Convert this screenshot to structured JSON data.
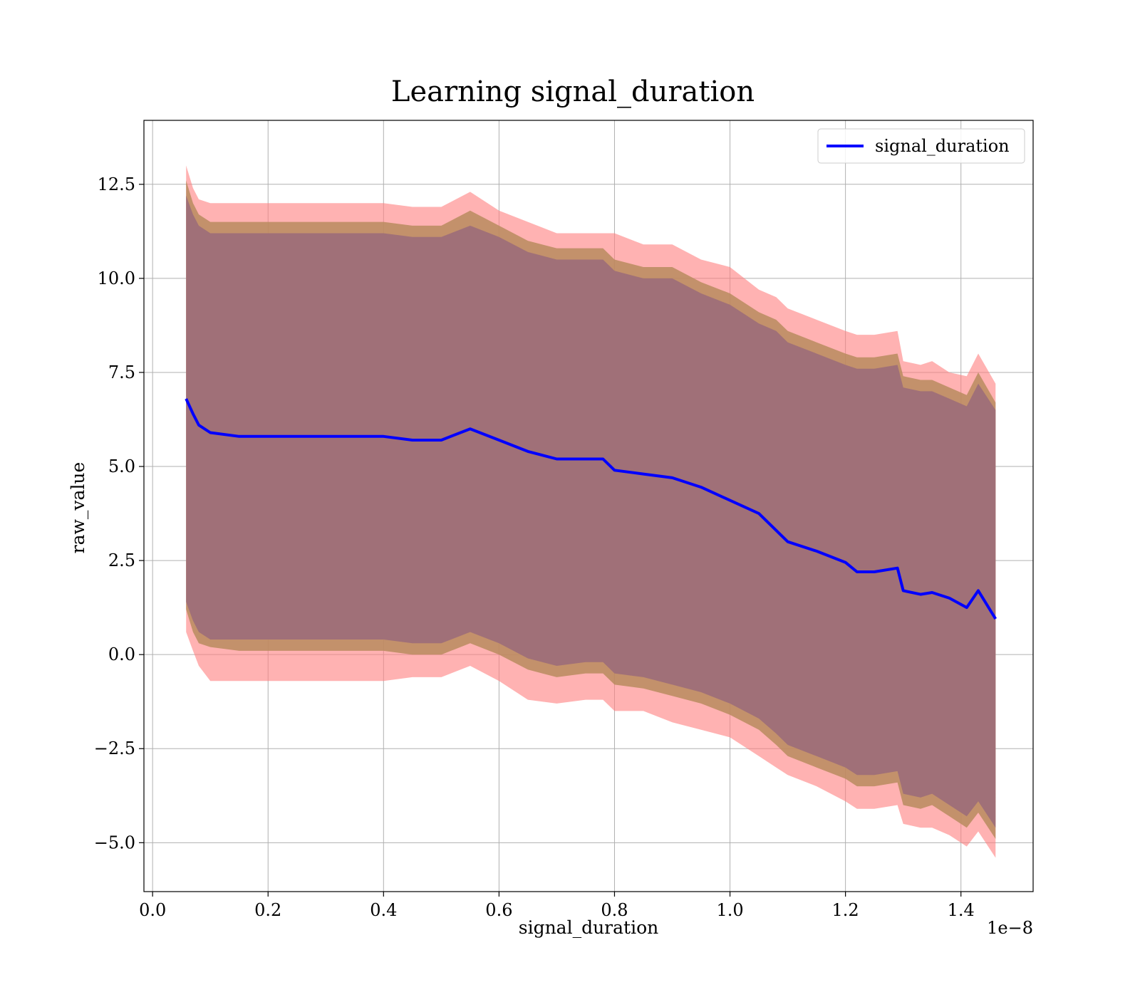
{
  "chart_data": {
    "type": "line",
    "title": "Learning signal_duration",
    "xlabel": "signal_duration",
    "ylabel": "raw_value",
    "x_offset_text": "1e−8",
    "xlim": [
      -0.015,
      1.525
    ],
    "ylim": [
      -6.3,
      14.2
    ],
    "x_ticks": [
      0.0,
      0.2,
      0.4,
      0.6,
      0.8,
      1.0,
      1.2,
      1.4
    ],
    "x_tick_labels": [
      "0.0",
      "0.2",
      "0.4",
      "0.6",
      "0.8",
      "1.0",
      "1.2",
      "1.4"
    ],
    "y_ticks": [
      -5.0,
      -2.5,
      0.0,
      2.5,
      5.0,
      7.5,
      10.0,
      12.5
    ],
    "y_tick_labels": [
      "−5.0",
      "−2.5",
      "0.0",
      "2.5",
      "5.0",
      "7.5",
      "10.0",
      "12.5"
    ],
    "grid": true,
    "legend": {
      "placement": "top-right",
      "entries": [
        "signal_duration"
      ]
    },
    "colors": {
      "mean_line": "#0000ff",
      "band_outer": "#ff7f7f",
      "band_middle": "#b98b5e",
      "band_inner": "#a07078",
      "grid": "#b0b0b0"
    },
    "x": [
      0.058,
      0.07,
      0.08,
      0.1,
      0.15,
      0.2,
      0.25,
      0.3,
      0.35,
      0.4,
      0.45,
      0.5,
      0.55,
      0.6,
      0.65,
      0.7,
      0.75,
      0.78,
      0.8,
      0.85,
      0.9,
      0.95,
      1.0,
      1.05,
      1.08,
      1.1,
      1.15,
      1.2,
      1.22,
      1.25,
      1.29,
      1.3,
      1.33,
      1.35,
      1.38,
      1.41,
      1.43,
      1.46
    ],
    "series": [
      {
        "name": "signal_duration",
        "role": "mean",
        "values": [
          6.8,
          6.4,
          6.1,
          5.9,
          5.8,
          5.8,
          5.8,
          5.8,
          5.8,
          5.8,
          5.7,
          5.7,
          6.0,
          5.7,
          5.4,
          5.2,
          5.2,
          5.2,
          4.9,
          4.8,
          4.7,
          4.45,
          4.1,
          3.75,
          3.3,
          3.0,
          2.75,
          2.45,
          2.2,
          2.2,
          2.3,
          1.7,
          1.6,
          1.65,
          1.5,
          1.25,
          1.7,
          0.95
        ]
      },
      {
        "role": "band_outer",
        "upper": [
          13.0,
          12.4,
          12.1,
          12.0,
          12.0,
          12.0,
          12.0,
          12.0,
          12.0,
          12.0,
          11.9,
          11.9,
          12.3,
          11.8,
          11.5,
          11.2,
          11.2,
          11.2,
          11.2,
          10.9,
          10.9,
          10.5,
          10.3,
          9.7,
          9.5,
          9.2,
          8.9,
          8.6,
          8.5,
          8.5,
          8.6,
          7.8,
          7.7,
          7.8,
          7.5,
          7.4,
          8.0,
          7.2
        ],
        "lower": [
          0.6,
          0.1,
          -0.3,
          -0.7,
          -0.7,
          -0.7,
          -0.7,
          -0.7,
          -0.7,
          -0.7,
          -0.6,
          -0.6,
          -0.3,
          -0.7,
          -1.2,
          -1.3,
          -1.2,
          -1.2,
          -1.5,
          -1.5,
          -1.8,
          -2.0,
          -2.2,
          -2.7,
          -3.0,
          -3.2,
          -3.5,
          -3.9,
          -4.1,
          -4.1,
          -4.0,
          -4.5,
          -4.6,
          -4.6,
          -4.8,
          -5.1,
          -4.7,
          -5.4
        ]
      },
      {
        "role": "band_middle",
        "upper": [
          12.6,
          12.0,
          11.7,
          11.5,
          11.5,
          11.5,
          11.5,
          11.5,
          11.5,
          11.5,
          11.4,
          11.4,
          11.8,
          11.4,
          11.0,
          10.8,
          10.8,
          10.8,
          10.5,
          10.3,
          10.3,
          9.9,
          9.6,
          9.1,
          8.9,
          8.6,
          8.3,
          8.0,
          7.9,
          7.9,
          8.0,
          7.4,
          7.3,
          7.3,
          7.1,
          6.9,
          7.5,
          6.7
        ],
        "lower": [
          1.2,
          0.6,
          0.3,
          0.2,
          0.1,
          0.1,
          0.1,
          0.1,
          0.1,
          0.1,
          0.0,
          0.0,
          0.3,
          0.0,
          -0.4,
          -0.6,
          -0.5,
          -0.5,
          -0.8,
          -0.9,
          -1.1,
          -1.3,
          -1.6,
          -2.0,
          -2.4,
          -2.7,
          -3.0,
          -3.3,
          -3.5,
          -3.5,
          -3.4,
          -4.0,
          -4.1,
          -4.0,
          -4.3,
          -4.6,
          -4.2,
          -4.9
        ]
      },
      {
        "role": "band_inner",
        "upper": [
          12.2,
          11.7,
          11.4,
          11.2,
          11.2,
          11.2,
          11.2,
          11.2,
          11.2,
          11.2,
          11.1,
          11.1,
          11.4,
          11.1,
          10.7,
          10.5,
          10.5,
          10.5,
          10.2,
          10.0,
          10.0,
          9.6,
          9.3,
          8.8,
          8.6,
          8.3,
          8.0,
          7.7,
          7.6,
          7.6,
          7.7,
          7.1,
          7.0,
          7.0,
          6.8,
          6.6,
          7.2,
          6.5
        ],
        "lower": [
          1.4,
          0.9,
          0.6,
          0.4,
          0.4,
          0.4,
          0.4,
          0.4,
          0.4,
          0.4,
          0.3,
          0.3,
          0.6,
          0.3,
          -0.1,
          -0.3,
          -0.2,
          -0.2,
          -0.5,
          -0.6,
          -0.8,
          -1.0,
          -1.3,
          -1.7,
          -2.1,
          -2.4,
          -2.7,
          -3.0,
          -3.2,
          -3.2,
          -3.1,
          -3.7,
          -3.8,
          -3.7,
          -4.0,
          -4.3,
          -3.9,
          -4.6
        ]
      }
    ]
  }
}
